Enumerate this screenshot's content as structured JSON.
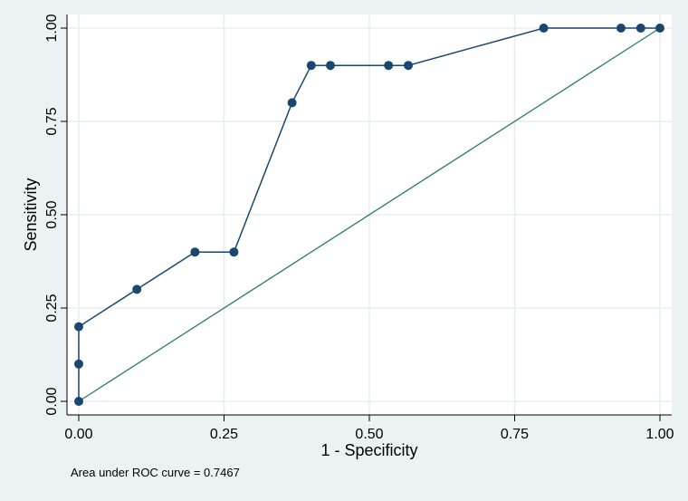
{
  "chart_data": {
    "type": "line",
    "title": "",
    "xlabel": "1 - Specificity",
    "ylabel": "Sensitivity",
    "xlim": [
      0,
      1
    ],
    "ylim": [
      0,
      1
    ],
    "x_ticks": [
      "0.00",
      "0.25",
      "0.50",
      "0.75",
      "1.00"
    ],
    "y_ticks": [
      "0.00",
      "0.25",
      "0.50",
      "0.75",
      "1.00"
    ],
    "grid": true,
    "series": [
      {
        "kind": "roc-curve",
        "color": "#1a476f",
        "points": [
          [
            0.0,
            0.0
          ],
          [
            0.0,
            0.1
          ],
          [
            0.0,
            0.2
          ],
          [
            0.1,
            0.3
          ],
          [
            0.2,
            0.4
          ],
          [
            0.267,
            0.4
          ],
          [
            0.367,
            0.8
          ],
          [
            0.4,
            0.9
          ],
          [
            0.433,
            0.9
          ],
          [
            0.533,
            0.9
          ],
          [
            0.567,
            0.9
          ],
          [
            0.8,
            1.0
          ],
          [
            0.933,
            1.0
          ],
          [
            0.967,
            1.0
          ],
          [
            1.0,
            1.0
          ]
        ]
      },
      {
        "kind": "reference-line",
        "color": "#2e7d6e",
        "points": [
          [
            0,
            0
          ],
          [
            1,
            1
          ]
        ]
      }
    ],
    "note": "Area under ROC curve = 0.7467"
  }
}
